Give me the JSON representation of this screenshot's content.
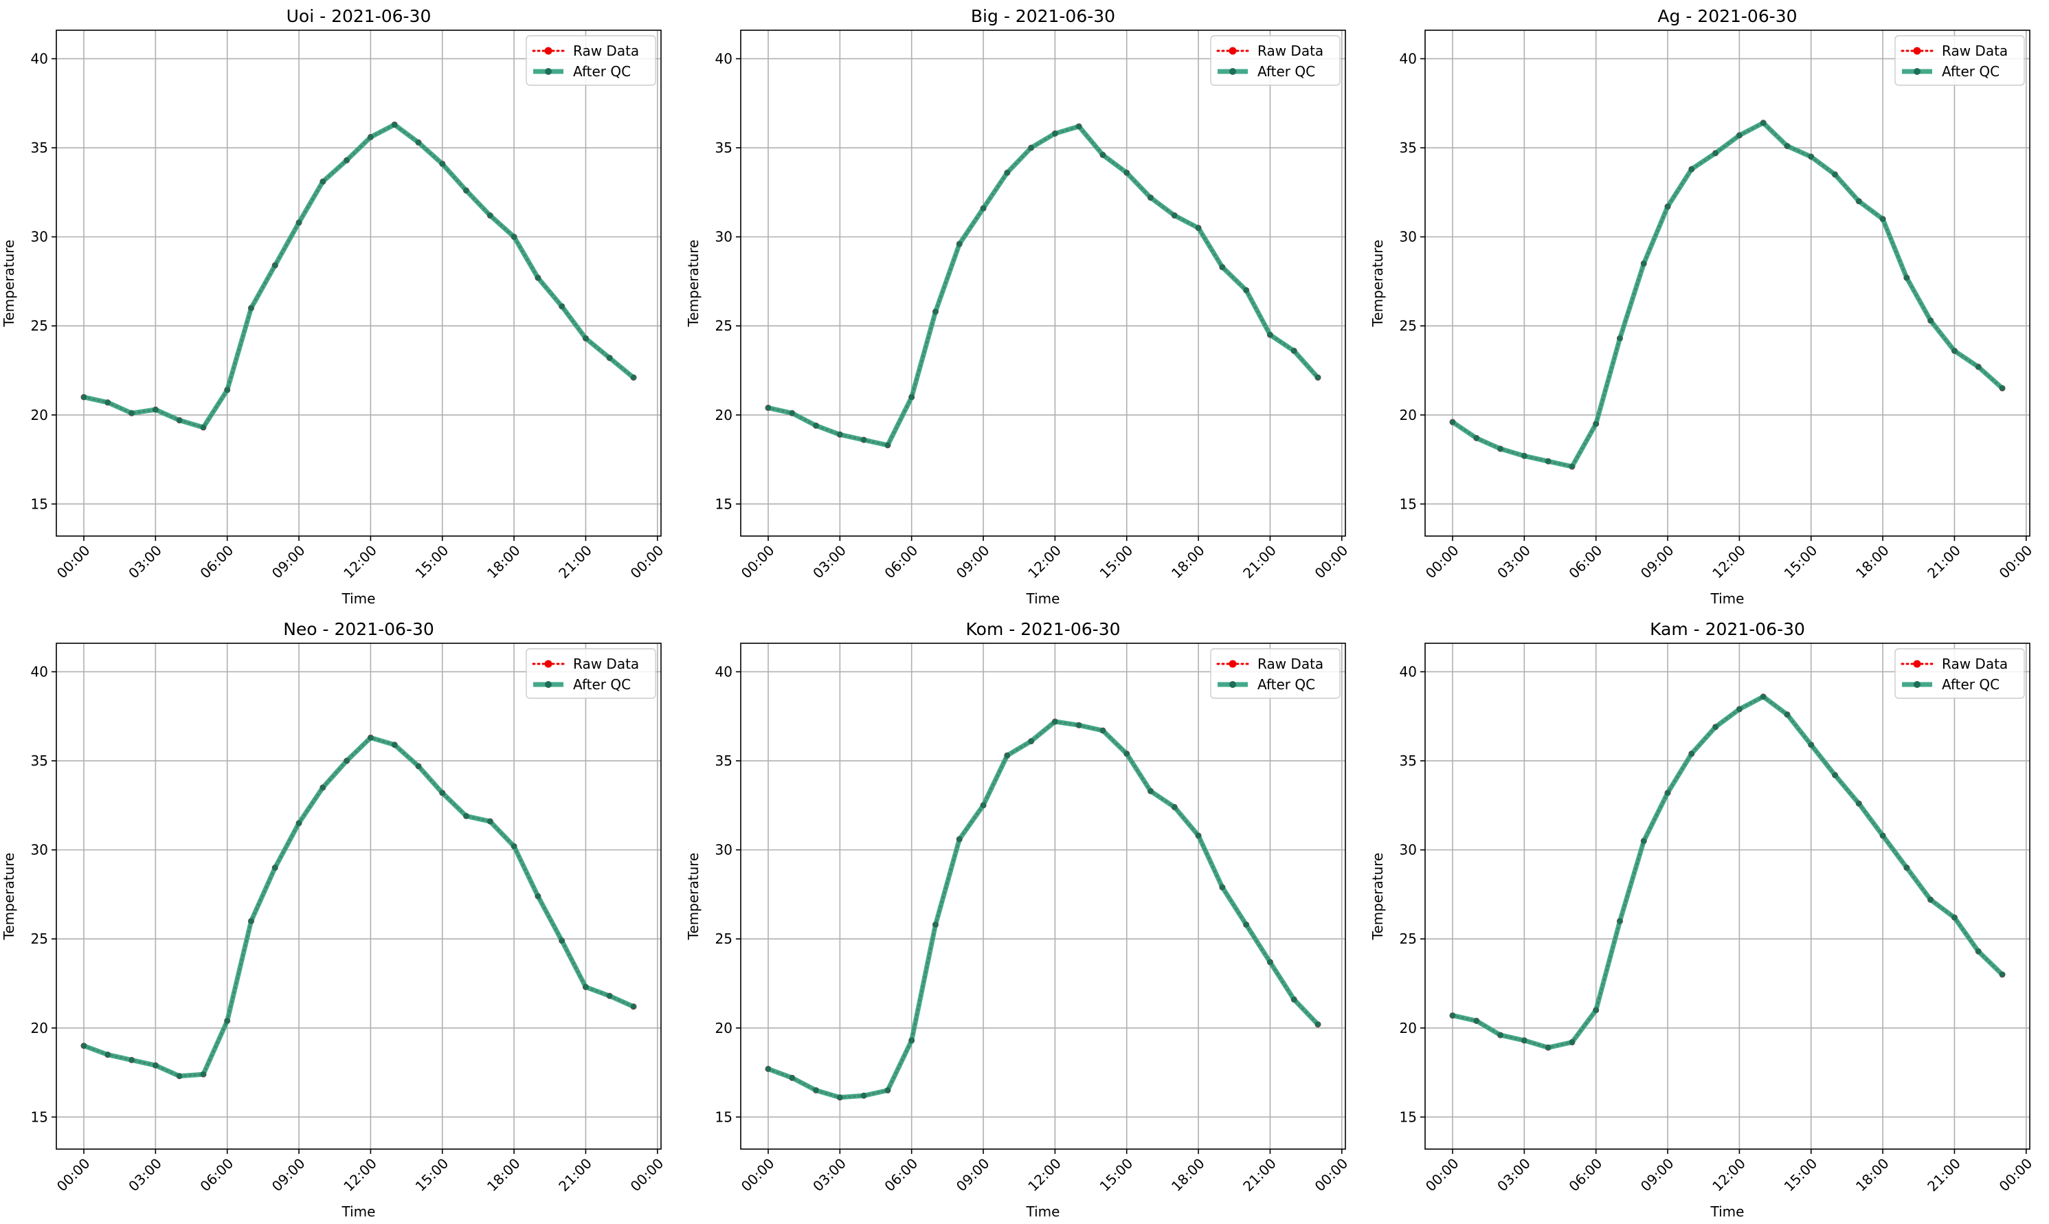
{
  "figure": {
    "colors": {
      "raw": "#ee0000",
      "qc": "#2a9d7a",
      "qc_dark": "#1f6e57",
      "grid": "#b0b0b0",
      "axes": "#000000"
    }
  },
  "chart_data": [
    {
      "type": "line",
      "title": "Uoi - 2021-06-30",
      "xlabel": "Time",
      "ylabel": "Temperature",
      "x_ticks": [
        "00:00",
        "03:00",
        "06:00",
        "09:00",
        "12:00",
        "15:00",
        "18:00",
        "21:00",
        "00:00"
      ],
      "x_tick_hours": [
        0,
        3,
        6,
        9,
        12,
        15,
        18,
        21,
        24
      ],
      "xlim": [
        -1.15,
        24.15
      ],
      "y_ticks": [
        15,
        20,
        25,
        30,
        35,
        40
      ],
      "ylim": [
        13.2,
        41.6
      ],
      "grid": true,
      "legend_position": "top-right",
      "x": [
        "00:00",
        "01:00",
        "02:00",
        "03:00",
        "04:00",
        "05:00",
        "06:00",
        "07:00",
        "08:00",
        "09:00",
        "10:00",
        "11:00",
        "12:00",
        "13:00",
        "14:00",
        "15:00",
        "16:00",
        "17:00",
        "18:00",
        "19:00",
        "20:00",
        "21:00",
        "22:00",
        "23:00"
      ],
      "series": [
        {
          "name": "Raw Data",
          "values": [
            21.0,
            20.7,
            20.1,
            20.3,
            19.7,
            19.3,
            21.4,
            26.0,
            28.4,
            30.8,
            33.1,
            34.3,
            35.6,
            36.3,
            35.3,
            34.1,
            32.6,
            31.2,
            30.0,
            27.7,
            26.1,
            24.3,
            23.2,
            22.1
          ]
        },
        {
          "name": "After QC",
          "values": [
            21.0,
            20.7,
            20.1,
            20.3,
            19.7,
            19.3,
            21.4,
            26.0,
            28.4,
            30.8,
            33.1,
            34.3,
            35.6,
            36.3,
            35.3,
            34.1,
            32.6,
            31.2,
            30.0,
            27.7,
            26.1,
            24.3,
            23.2,
            22.1
          ]
        }
      ]
    },
    {
      "type": "line",
      "title": "Big - 2021-06-30",
      "xlabel": "Time",
      "ylabel": "Temperature",
      "x_ticks": [
        "00:00",
        "03:00",
        "06:00",
        "09:00",
        "12:00",
        "15:00",
        "18:00",
        "21:00",
        "00:00"
      ],
      "x_tick_hours": [
        0,
        3,
        6,
        9,
        12,
        15,
        18,
        21,
        24
      ],
      "xlim": [
        -1.15,
        24.15
      ],
      "y_ticks": [
        15,
        20,
        25,
        30,
        35,
        40
      ],
      "ylim": [
        13.2,
        41.6
      ],
      "grid": true,
      "legend_position": "top-right",
      "x": [
        "00:00",
        "01:00",
        "02:00",
        "03:00",
        "04:00",
        "05:00",
        "06:00",
        "07:00",
        "08:00",
        "09:00",
        "10:00",
        "11:00",
        "12:00",
        "13:00",
        "14:00",
        "15:00",
        "16:00",
        "17:00",
        "18:00",
        "19:00",
        "20:00",
        "21:00",
        "22:00",
        "23:00"
      ],
      "series": [
        {
          "name": "Raw Data",
          "values": [
            20.4,
            20.1,
            19.4,
            18.9,
            18.6,
            18.3,
            21.0,
            25.8,
            29.6,
            31.6,
            33.6,
            35.0,
            35.8,
            36.2,
            34.6,
            33.6,
            32.2,
            31.2,
            30.5,
            28.3,
            27.0,
            24.5,
            23.6,
            22.1
          ]
        },
        {
          "name": "After QC",
          "values": [
            20.4,
            20.1,
            19.4,
            18.9,
            18.6,
            18.3,
            21.0,
            25.8,
            29.6,
            31.6,
            33.6,
            35.0,
            35.8,
            36.2,
            34.6,
            33.6,
            32.2,
            31.2,
            30.5,
            28.3,
            27.0,
            24.5,
            23.6,
            22.1
          ]
        }
      ]
    },
    {
      "type": "line",
      "title": "Ag - 2021-06-30",
      "xlabel": "Time",
      "ylabel": "Temperature",
      "x_ticks": [
        "00:00",
        "03:00",
        "06:00",
        "09:00",
        "12:00",
        "15:00",
        "18:00",
        "21:00",
        "00:00"
      ],
      "x_tick_hours": [
        0,
        3,
        6,
        9,
        12,
        15,
        18,
        21,
        24
      ],
      "xlim": [
        -1.15,
        24.15
      ],
      "y_ticks": [
        15,
        20,
        25,
        30,
        35,
        40
      ],
      "ylim": [
        13.2,
        41.6
      ],
      "grid": true,
      "legend_position": "top-right",
      "x": [
        "00:00",
        "01:00",
        "02:00",
        "03:00",
        "04:00",
        "05:00",
        "06:00",
        "07:00",
        "08:00",
        "09:00",
        "10:00",
        "11:00",
        "12:00",
        "13:00",
        "14:00",
        "15:00",
        "16:00",
        "17:00",
        "18:00",
        "19:00",
        "20:00",
        "21:00",
        "22:00",
        "23:00"
      ],
      "series": [
        {
          "name": "Raw Data",
          "values": [
            19.6,
            18.7,
            18.1,
            17.7,
            17.4,
            17.1,
            19.5,
            24.3,
            28.5,
            31.7,
            33.8,
            34.7,
            35.7,
            36.4,
            35.1,
            34.5,
            33.5,
            32.0,
            31.0,
            27.7,
            25.3,
            23.6,
            22.7,
            21.5
          ]
        },
        {
          "name": "After QC",
          "values": [
            19.6,
            18.7,
            18.1,
            17.7,
            17.4,
            17.1,
            19.5,
            24.3,
            28.5,
            31.7,
            33.8,
            34.7,
            35.7,
            36.4,
            35.1,
            34.5,
            33.5,
            32.0,
            31.0,
            27.7,
            25.3,
            23.6,
            22.7,
            21.5
          ]
        }
      ]
    },
    {
      "type": "line",
      "title": "Neo - 2021-06-30",
      "xlabel": "Time",
      "ylabel": "Temperature",
      "x_ticks": [
        "00:00",
        "03:00",
        "06:00",
        "09:00",
        "12:00",
        "15:00",
        "18:00",
        "21:00",
        "00:00"
      ],
      "x_tick_hours": [
        0,
        3,
        6,
        9,
        12,
        15,
        18,
        21,
        24
      ],
      "xlim": [
        -1.15,
        24.15
      ],
      "y_ticks": [
        15,
        20,
        25,
        30,
        35,
        40
      ],
      "ylim": [
        13.2,
        41.6
      ],
      "grid": true,
      "legend_position": "top-right",
      "x": [
        "00:00",
        "01:00",
        "02:00",
        "03:00",
        "04:00",
        "05:00",
        "06:00",
        "07:00",
        "08:00",
        "09:00",
        "10:00",
        "11:00",
        "12:00",
        "13:00",
        "14:00",
        "15:00",
        "16:00",
        "17:00",
        "18:00",
        "19:00",
        "20:00",
        "21:00",
        "22:00",
        "23:00"
      ],
      "series": [
        {
          "name": "Raw Data",
          "values": [
            19.0,
            18.5,
            18.2,
            17.9,
            17.3,
            17.4,
            20.4,
            26.0,
            29.0,
            31.5,
            33.5,
            35.0,
            36.3,
            35.9,
            34.7,
            33.2,
            31.9,
            31.6,
            30.2,
            27.4,
            24.9,
            22.3,
            21.8,
            21.2
          ]
        },
        {
          "name": "After QC",
          "values": [
            19.0,
            18.5,
            18.2,
            17.9,
            17.3,
            17.4,
            20.4,
            26.0,
            29.0,
            31.5,
            33.5,
            35.0,
            36.3,
            35.9,
            34.7,
            33.2,
            31.9,
            31.6,
            30.2,
            27.4,
            24.9,
            22.3,
            21.8,
            21.2
          ]
        }
      ]
    },
    {
      "type": "line",
      "title": "Kom - 2021-06-30",
      "xlabel": "Time",
      "ylabel": "Temperature",
      "x_ticks": [
        "00:00",
        "03:00",
        "06:00",
        "09:00",
        "12:00",
        "15:00",
        "18:00",
        "21:00",
        "00:00"
      ],
      "x_tick_hours": [
        0,
        3,
        6,
        9,
        12,
        15,
        18,
        21,
        24
      ],
      "xlim": [
        -1.15,
        24.15
      ],
      "y_ticks": [
        15,
        20,
        25,
        30,
        35,
        40
      ],
      "ylim": [
        13.2,
        41.6
      ],
      "grid": true,
      "legend_position": "top-right",
      "x": [
        "00:00",
        "01:00",
        "02:00",
        "03:00",
        "04:00",
        "05:00",
        "06:00",
        "07:00",
        "08:00",
        "09:00",
        "10:00",
        "11:00",
        "12:00",
        "13:00",
        "14:00",
        "15:00",
        "16:00",
        "17:00",
        "18:00",
        "19:00",
        "20:00",
        "21:00",
        "22:00",
        "23:00"
      ],
      "series": [
        {
          "name": "Raw Data",
          "values": [
            17.7,
            17.2,
            16.5,
            16.1,
            16.2,
            16.5,
            19.3,
            25.8,
            30.6,
            32.5,
            35.3,
            36.1,
            37.2,
            37.0,
            36.7,
            35.4,
            33.3,
            32.4,
            30.8,
            27.9,
            25.8,
            23.7,
            21.6,
            20.2
          ]
        },
        {
          "name": "After QC",
          "values": [
            17.7,
            17.2,
            16.5,
            16.1,
            16.2,
            16.5,
            19.3,
            25.8,
            30.6,
            32.5,
            35.3,
            36.1,
            37.2,
            37.0,
            36.7,
            35.4,
            33.3,
            32.4,
            30.8,
            27.9,
            25.8,
            23.7,
            21.6,
            20.2
          ]
        }
      ]
    },
    {
      "type": "line",
      "title": "Kam - 2021-06-30",
      "xlabel": "Time",
      "ylabel": "Temperature",
      "x_ticks": [
        "00:00",
        "03:00",
        "06:00",
        "09:00",
        "12:00",
        "15:00",
        "18:00",
        "21:00",
        "00:00"
      ],
      "x_tick_hours": [
        0,
        3,
        6,
        9,
        12,
        15,
        18,
        21,
        24
      ],
      "xlim": [
        -1.15,
        24.15
      ],
      "y_ticks": [
        15,
        20,
        25,
        30,
        35,
        40
      ],
      "ylim": [
        13.2,
        41.6
      ],
      "grid": true,
      "legend_position": "top-right",
      "x": [
        "00:00",
        "01:00",
        "02:00",
        "03:00",
        "04:00",
        "05:00",
        "06:00",
        "07:00",
        "08:00",
        "09:00",
        "10:00",
        "11:00",
        "12:00",
        "13:00",
        "14:00",
        "15:00",
        "16:00",
        "17:00",
        "18:00",
        "19:00",
        "20:00",
        "21:00",
        "22:00",
        "23:00"
      ],
      "series": [
        {
          "name": "Raw Data",
          "values": [
            20.7,
            20.4,
            19.6,
            19.3,
            18.9,
            19.2,
            21.0,
            26.0,
            30.5,
            33.2,
            35.4,
            36.9,
            37.9,
            38.6,
            37.6,
            35.9,
            34.2,
            32.6,
            30.8,
            29.0,
            27.2,
            26.2,
            24.3,
            23.0
          ]
        },
        {
          "name": "After QC",
          "values": [
            20.7,
            20.4,
            19.6,
            19.3,
            18.9,
            19.2,
            21.0,
            26.0,
            30.5,
            33.2,
            35.4,
            36.9,
            37.9,
            38.6,
            37.6,
            35.9,
            34.2,
            32.6,
            30.8,
            29.0,
            27.2,
            26.2,
            24.3,
            23.0
          ]
        }
      ]
    }
  ]
}
